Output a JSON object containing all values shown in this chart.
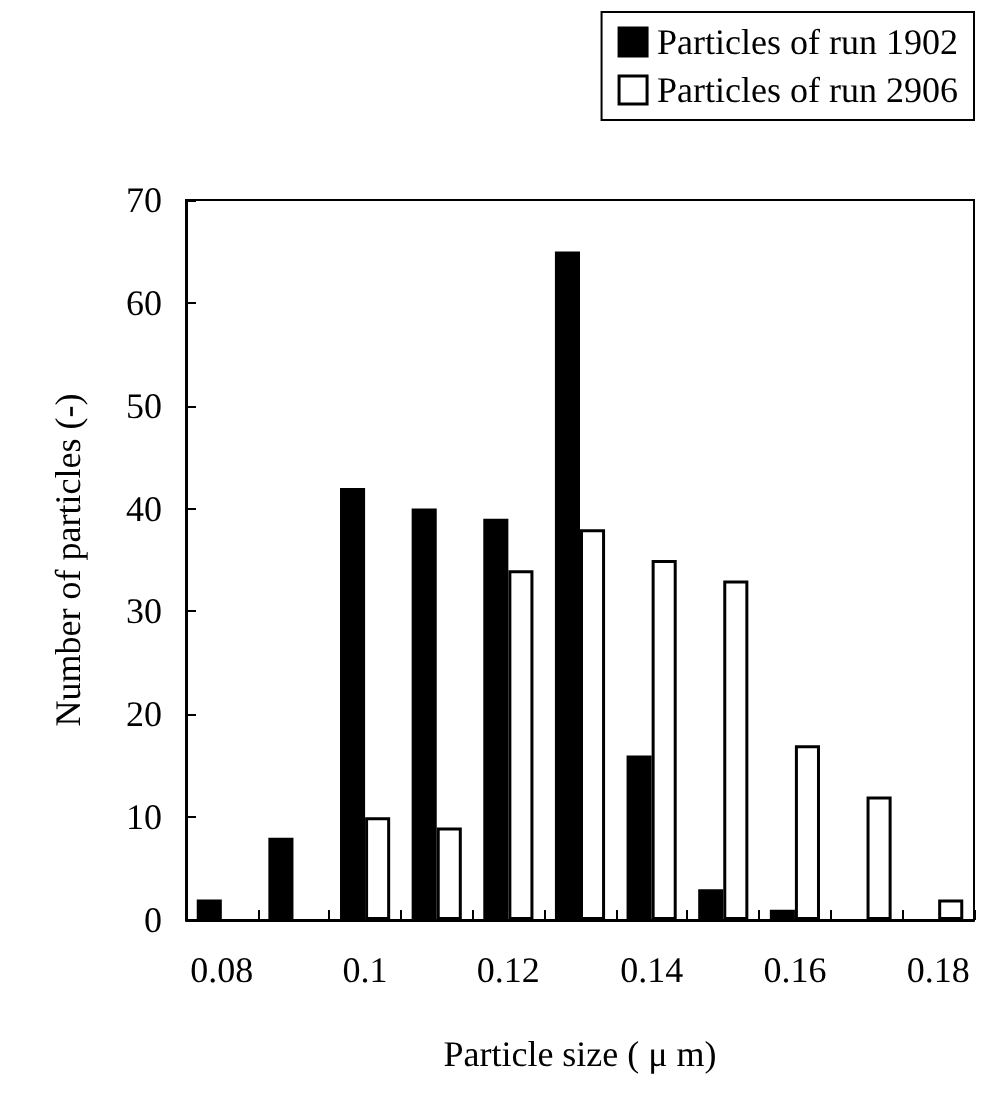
{
  "chart_data": {
    "type": "bar",
    "xlabel": "Particle size ( μ m)",
    "ylabel": "Number of particles (-)",
    "categories": [
      "0.08",
      null,
      "0.1",
      null,
      "0.12",
      null,
      "0.14",
      null,
      "0.16",
      null,
      "0.18"
    ],
    "series": [
      {
        "name": "Particles of run 1902",
        "color": "#000000",
        "values": [
          2,
          8,
          42,
          40,
          39,
          65,
          16,
          3,
          1,
          0,
          0
        ]
      },
      {
        "name": "Particles of run 2906",
        "color": "#ffffff",
        "values": [
          0,
          0,
          10,
          9,
          34,
          38,
          35,
          33,
          17,
          12,
          2
        ]
      }
    ],
    "ylim": [
      0,
      70
    ],
    "yticks": [
      0,
      10,
      20,
      30,
      40,
      50,
      60,
      70
    ],
    "grid": false,
    "legend": "top right"
  }
}
